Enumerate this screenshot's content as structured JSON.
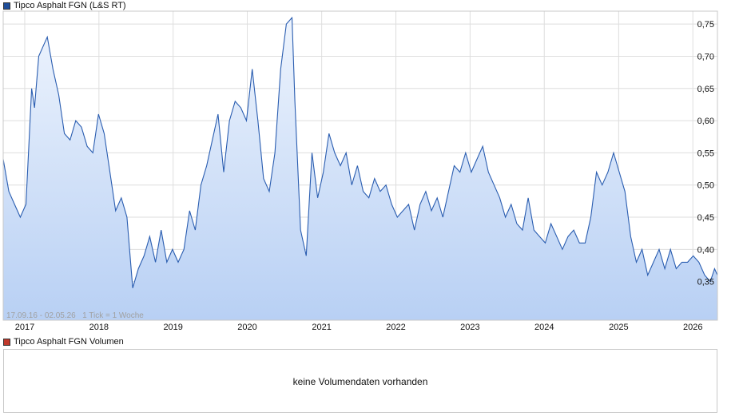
{
  "legend": {
    "price_label": "Tipco Asphalt FGN (L&S RT)",
    "price_color": "#1f4e9a",
    "volume_label": "Tipco Asphalt FGN Volumen",
    "volume_color": "#c0392b"
  },
  "info_text": "17.09.16 - 02.05.26   1 Tick = 1 Woche",
  "volume_message": "keine Volumendaten vorhanden",
  "chart_data": {
    "type": "area",
    "title": "",
    "xlabel": "",
    "ylabel": "",
    "x_ticks": [
      "2017",
      "2018",
      "2019",
      "2020",
      "2021",
      "2022",
      "2023",
      "2024",
      "2025",
      "2026"
    ],
    "y_ticks": [
      "0,35",
      "0,40",
      "0,45",
      "0,50",
      "0,55",
      "0,60",
      "0,65",
      "0,70",
      "0,75"
    ],
    "ylim": [
      0.29,
      0.77
    ],
    "xlim": [
      "2016-09-17",
      "2026-05-02"
    ],
    "grid": true,
    "axis_side": "right",
    "line_color": "#2a5db0",
    "fill_top_color": "#eef4fd",
    "fill_bottom_color": "#b8d0f4",
    "series": [
      {
        "name": "Tipco Asphalt FGN (L&S RT)",
        "points": [
          [
            "2016-09-17",
            0.54
          ],
          [
            "2016-10-15",
            0.49
          ],
          [
            "2016-11-12",
            0.47
          ],
          [
            "2016-12-10",
            0.45
          ],
          [
            "2017-01-07",
            0.47
          ],
          [
            "2017-02-04",
            0.65
          ],
          [
            "2017-02-18",
            0.62
          ],
          [
            "2017-03-11",
            0.7
          ],
          [
            "2017-04-08",
            0.72
          ],
          [
            "2017-04-22",
            0.73
          ],
          [
            "2017-05-20",
            0.68
          ],
          [
            "2017-06-17",
            0.64
          ],
          [
            "2017-07-15",
            0.58
          ],
          [
            "2017-08-12",
            0.57
          ],
          [
            "2017-09-09",
            0.6
          ],
          [
            "2017-10-07",
            0.59
          ],
          [
            "2017-11-04",
            0.56
          ],
          [
            "2017-12-02",
            0.55
          ],
          [
            "2017-12-30",
            0.61
          ],
          [
            "2018-01-27",
            0.58
          ],
          [
            "2018-02-24",
            0.52
          ],
          [
            "2018-03-24",
            0.46
          ],
          [
            "2018-04-21",
            0.48
          ],
          [
            "2018-05-19",
            0.45
          ],
          [
            "2018-06-16",
            0.34
          ],
          [
            "2018-07-14",
            0.37
          ],
          [
            "2018-08-11",
            0.39
          ],
          [
            "2018-09-08",
            0.42
          ],
          [
            "2018-10-06",
            0.38
          ],
          [
            "2018-11-03",
            0.43
          ],
          [
            "2018-12-01",
            0.38
          ],
          [
            "2018-12-29",
            0.4
          ],
          [
            "2019-01-26",
            0.38
          ],
          [
            "2019-02-23",
            0.4
          ],
          [
            "2019-03-23",
            0.46
          ],
          [
            "2019-04-20",
            0.43
          ],
          [
            "2019-05-18",
            0.5
          ],
          [
            "2019-06-15",
            0.53
          ],
          [
            "2019-07-13",
            0.57
          ],
          [
            "2019-08-10",
            0.61
          ],
          [
            "2019-09-07",
            0.52
          ],
          [
            "2019-10-05",
            0.6
          ],
          [
            "2019-11-02",
            0.63
          ],
          [
            "2019-11-30",
            0.62
          ],
          [
            "2019-12-28",
            0.6
          ],
          [
            "2020-01-25",
            0.68
          ],
          [
            "2020-02-22",
            0.6
          ],
          [
            "2020-03-21",
            0.51
          ],
          [
            "2020-04-18",
            0.49
          ],
          [
            "2020-05-16",
            0.55
          ],
          [
            "2020-06-13",
            0.68
          ],
          [
            "2020-07-11",
            0.75
          ],
          [
            "2020-08-08",
            0.76
          ],
          [
            "2020-08-22",
            0.63
          ],
          [
            "2020-09-19",
            0.43
          ],
          [
            "2020-10-17",
            0.39
          ],
          [
            "2020-11-14",
            0.55
          ],
          [
            "2020-12-12",
            0.48
          ],
          [
            "2021-01-09",
            0.52
          ],
          [
            "2021-02-06",
            0.58
          ],
          [
            "2021-03-06",
            0.55
          ],
          [
            "2021-04-03",
            0.53
          ],
          [
            "2021-05-01",
            0.55
          ],
          [
            "2021-05-29",
            0.5
          ],
          [
            "2021-06-26",
            0.53
          ],
          [
            "2021-07-24",
            0.49
          ],
          [
            "2021-08-21",
            0.48
          ],
          [
            "2021-09-18",
            0.51
          ],
          [
            "2021-10-16",
            0.49
          ],
          [
            "2021-11-13",
            0.5
          ],
          [
            "2021-12-11",
            0.47
          ],
          [
            "2022-01-08",
            0.45
          ],
          [
            "2022-02-05",
            0.46
          ],
          [
            "2022-03-05",
            0.47
          ],
          [
            "2022-04-02",
            0.43
          ],
          [
            "2022-04-30",
            0.47
          ],
          [
            "2022-05-28",
            0.49
          ],
          [
            "2022-06-25",
            0.46
          ],
          [
            "2022-07-23",
            0.48
          ],
          [
            "2022-08-20",
            0.45
          ],
          [
            "2022-09-17",
            0.49
          ],
          [
            "2022-10-15",
            0.53
          ],
          [
            "2022-11-12",
            0.52
          ],
          [
            "2022-12-10",
            0.55
          ],
          [
            "2023-01-07",
            0.52
          ],
          [
            "2023-02-04",
            0.54
          ],
          [
            "2023-03-04",
            0.56
          ],
          [
            "2023-04-01",
            0.52
          ],
          [
            "2023-04-29",
            0.5
          ],
          [
            "2023-05-27",
            0.48
          ],
          [
            "2023-06-24",
            0.45
          ],
          [
            "2023-07-22",
            0.47
          ],
          [
            "2023-08-19",
            0.44
          ],
          [
            "2023-09-16",
            0.43
          ],
          [
            "2023-10-14",
            0.48
          ],
          [
            "2023-11-11",
            0.43
          ],
          [
            "2023-12-09",
            0.42
          ],
          [
            "2024-01-06",
            0.41
          ],
          [
            "2024-02-03",
            0.44
          ],
          [
            "2024-03-02",
            0.42
          ],
          [
            "2024-03-30",
            0.4
          ],
          [
            "2024-04-27",
            0.42
          ],
          [
            "2024-05-25",
            0.43
          ],
          [
            "2024-06-22",
            0.41
          ],
          [
            "2024-07-20",
            0.41
          ],
          [
            "2024-08-17",
            0.45
          ],
          [
            "2024-09-14",
            0.52
          ],
          [
            "2024-10-12",
            0.5
          ],
          [
            "2024-11-09",
            0.52
          ],
          [
            "2024-12-07",
            0.55
          ],
          [
            "2025-01-04",
            0.52
          ],
          [
            "2025-02-01",
            0.49
          ],
          [
            "2025-03-01",
            0.42
          ],
          [
            "2025-03-29",
            0.38
          ],
          [
            "2025-04-26",
            0.4
          ],
          [
            "2025-05-24",
            0.36
          ],
          [
            "2025-06-21",
            0.38
          ],
          [
            "2025-07-19",
            0.4
          ],
          [
            "2025-08-16",
            0.37
          ],
          [
            "2025-09-13",
            0.4
          ],
          [
            "2025-10-11",
            0.37
          ],
          [
            "2025-11-08",
            0.38
          ],
          [
            "2025-12-06",
            0.38
          ],
          [
            "2026-01-03",
            0.39
          ],
          [
            "2026-01-31",
            0.38
          ],
          [
            "2026-02-28",
            0.36
          ],
          [
            "2026-03-28",
            0.35
          ],
          [
            "2026-04-18",
            0.37
          ],
          [
            "2026-05-02",
            0.36
          ]
        ]
      }
    ]
  },
  "volume_chart": {
    "x_ticks": [],
    "values": []
  }
}
